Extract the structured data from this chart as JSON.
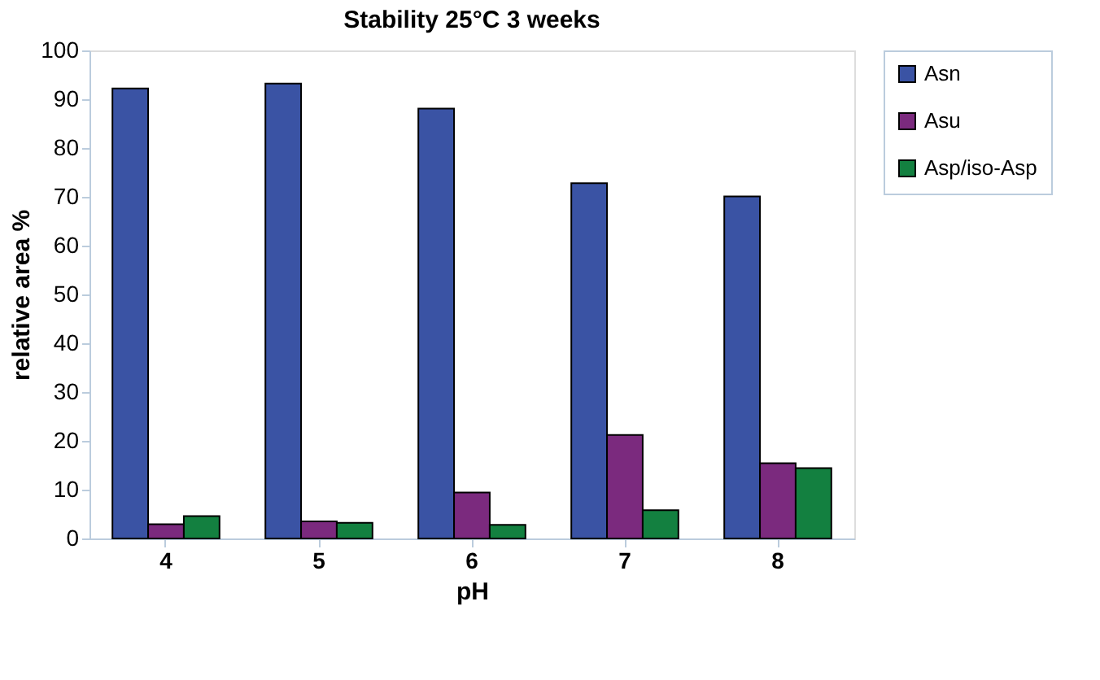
{
  "chart_data": {
    "type": "bar",
    "title": "Stability 25°C 3 weeks",
    "xlabel": "pH",
    "ylabel": "relative area %",
    "categories": [
      "4",
      "5",
      "6",
      "7",
      "8"
    ],
    "series": [
      {
        "name": "Asn",
        "color": "#3a53a4",
        "values": [
          92.2,
          93.2,
          88.1,
          72.8,
          70.1
        ]
      },
      {
        "name": "Asu",
        "color": "#7b2a7e",
        "values": [
          2.9,
          3.5,
          9.4,
          21.2,
          15.4
        ]
      },
      {
        "name": "Asp/iso-Asp",
        "color": "#138040",
        "values": [
          4.6,
          3.2,
          2.8,
          5.8,
          14.4
        ]
      }
    ],
    "ylim": [
      0,
      100
    ],
    "yticks": [
      0,
      10,
      20,
      30,
      40,
      50,
      60,
      70,
      80,
      90,
      100
    ],
    "grid": false,
    "legend": "right"
  }
}
